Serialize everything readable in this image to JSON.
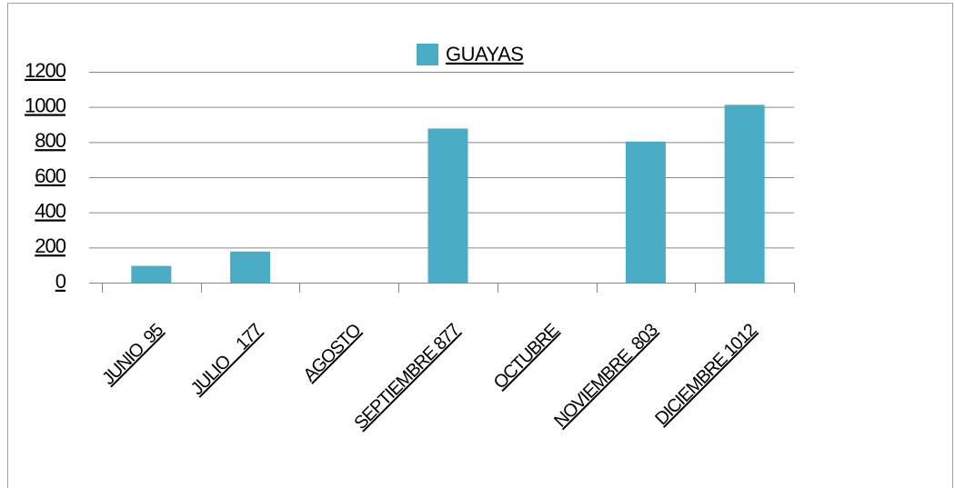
{
  "chart_data": {
    "type": "bar",
    "categories": [
      "JUNIO  95",
      "JULIO    177",
      "AGOSTO",
      "SEPTIEMBRE 877",
      "OCTUBRE",
      "NOVIEMBRE  803",
      "DICIEMBRE 1012"
    ],
    "series": [
      {
        "name": "GUAYAS",
        "color": "#4bacc6",
        "values": [
          95,
          177,
          null,
          877,
          null,
          803,
          1012
        ]
      }
    ],
    "ylim": [
      0,
      1200
    ],
    "yticks": [
      0,
      200,
      400,
      600,
      800,
      1000,
      1200
    ],
    "grid": true,
    "legend": "top"
  }
}
